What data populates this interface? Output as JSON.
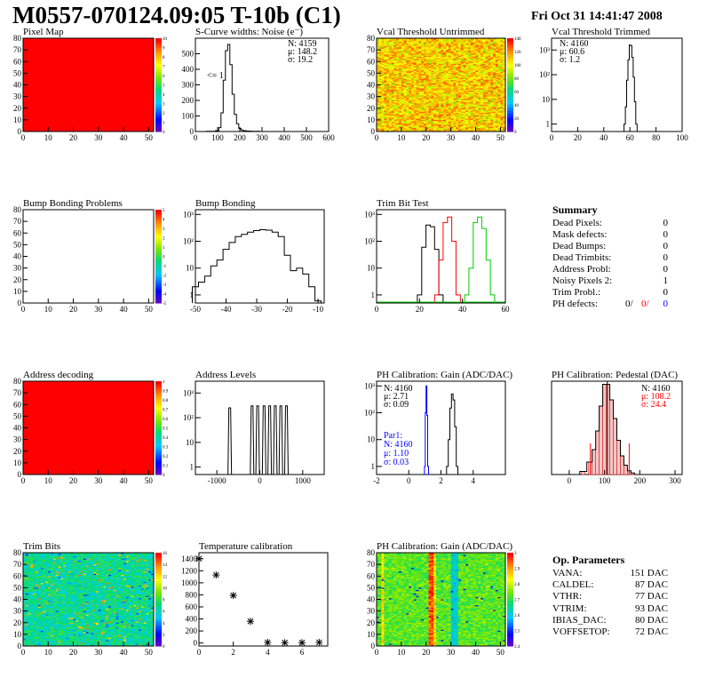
{
  "header": {
    "title": "M0557-070124.09:05 T-10b (C1)",
    "date": "Fri Oct 31 14:41:47 2008"
  },
  "panels": {
    "pixel_map": {
      "title": "Pixel Map"
    },
    "scurve": {
      "title": "S-Curve widths: Noise (e⁻)",
      "stats": [
        "N: 4159",
        "μ: 148.2",
        "σ: 19.2"
      ],
      "note": "<= 1"
    },
    "vcal_untrimmed": {
      "title": "Vcal Threshold Untrimmed"
    },
    "vcal_trimmed": {
      "title": "Vcal Threshold Trimmed",
      "stats": [
        "N: 4160",
        "μ: 60.6",
        "σ: 1.2"
      ]
    },
    "bump_problems": {
      "title": "Bump Bonding Problems"
    },
    "bump_bonding": {
      "title": "Bump Bonding"
    },
    "trim_bit_test": {
      "title": "Trim Bit Test"
    },
    "address_decoding": {
      "title": "Address decoding"
    },
    "address_levels": {
      "title": "Address Levels"
    },
    "ph_gain": {
      "title": "PH Calibration: Gain (ADC/DAC)",
      "stats": [
        "N: 4160",
        "μ: 2.71",
        "σ: 0.09"
      ],
      "par1": [
        "Par1:",
        "N: 4160",
        "μ: 1.10",
        "σ: 0.03"
      ]
    },
    "ph_pedestal": {
      "title": "PH Calibration: Pedestal (DAC)",
      "stats": [
        "N: 4160",
        "μ: 108.2",
        "σ: 24.4"
      ]
    },
    "trim_bits": {
      "title": "Trim Bits"
    },
    "temperature": {
      "title": "Temperature calibration"
    },
    "ph_gain_map": {
      "title": "PH Calibration: Gain (ADC/DAC)"
    }
  },
  "summary": {
    "title": "Summary",
    "rows": [
      {
        "label": "Dead Pixels:",
        "value": "0"
      },
      {
        "label": "Mask defects:",
        "value": "0"
      },
      {
        "label": "Dead Bumps:",
        "value": "0"
      },
      {
        "label": "Dead Trimbits:",
        "value": "0"
      },
      {
        "label": "Address Probl:",
        "value": "0"
      },
      {
        "label": "Noisy Pixels 2:",
        "value": "1"
      },
      {
        "label": "Trim Probl.:",
        "value": "0"
      }
    ],
    "ph_defects": {
      "label": "PH defects:",
      "v1": "0/",
      "v2": "0/",
      "v3": "0"
    }
  },
  "op_parameters": {
    "title": "Op. Parameters",
    "rows": [
      {
        "label": "VANA:",
        "value": "151 DAC"
      },
      {
        "label": "CALDEL:",
        "value": "87 DAC"
      },
      {
        "label": "VTHR:",
        "value": "77 DAC"
      },
      {
        "label": "VTRIM:",
        "value": "93 DAC"
      },
      {
        "label": "IBIAS_DAC:",
        "value": "80 DAC"
      },
      {
        "label": "VOFFSETOP:",
        "value": "72 DAC"
      }
    ]
  },
  "colors": {
    "red": "#ff0000",
    "blue": "#0000ff",
    "green": "#00cc00",
    "pedestal_fill": "#cc0000"
  },
  "chart_data": [
    {
      "type": "heatmap",
      "name": "Pixel Map",
      "xlim": [
        0,
        52
      ],
      "ylim": [
        0,
        80
      ],
      "xticks": [
        0,
        10,
        20,
        30,
        40,
        50
      ],
      "yticks": [
        0,
        10,
        20,
        30,
        40,
        50,
        60,
        70,
        80
      ],
      "zticks": [
        "0",
        "1",
        "2",
        "3",
        "4",
        "5",
        "6",
        "7",
        "8",
        "9",
        "10"
      ],
      "uniform_value": 10
    },
    {
      "type": "line",
      "name": "S-Curve widths",
      "xlim": [
        0,
        600
      ],
      "ylim": [
        0,
        600
      ],
      "xticks": [
        0,
        100,
        200,
        300,
        400,
        500,
        600
      ],
      "yticks": [
        0,
        100,
        200,
        300,
        400,
        500
      ],
      "x": [
        60,
        80,
        100,
        110,
        120,
        130,
        140,
        150,
        160,
        170,
        180,
        190,
        200,
        210,
        220,
        240,
        260,
        280
      ],
      "y": [
        1,
        2,
        5,
        25,
        120,
        330,
        520,
        560,
        430,
        240,
        110,
        50,
        20,
        10,
        5,
        3,
        2,
        1
      ]
    },
    {
      "type": "heatmap",
      "name": "Vcal Threshold Untrimmed",
      "xlim": [
        0,
        52
      ],
      "ylim": [
        0,
        80
      ],
      "xticks": [
        0,
        10,
        20,
        30,
        40,
        50
      ],
      "yticks": [
        0,
        10,
        20,
        30,
        40,
        50,
        60,
        70,
        80
      ],
      "zticks": [
        "0",
        "20",
        "40",
        "60",
        "80",
        "100",
        "120",
        "140"
      ]
    },
    {
      "type": "line",
      "name": "Vcal Threshold Trimmed",
      "log_y": true,
      "xlim": [
        0,
        100
      ],
      "ylim": [
        0.5,
        3000
      ],
      "xticks": [
        0,
        20,
        40,
        60,
        80,
        100
      ],
      "yticks": [
        "1",
        "10",
        "10²",
        "10³"
      ],
      "x": [
        56,
        57,
        58,
        59,
        60,
        61,
        62,
        63,
        64,
        65
      ],
      "y": [
        1,
        5,
        60,
        400,
        1600,
        1500,
        500,
        80,
        8,
        1
      ]
    },
    {
      "type": "heatmap",
      "name": "Bump Bonding Problems",
      "xlim": [
        0,
        52
      ],
      "ylim": [
        0,
        80
      ],
      "xticks": [
        0,
        10,
        20,
        30,
        40,
        50
      ],
      "yticks": [
        0,
        10,
        20,
        30,
        40,
        50,
        60,
        70,
        80
      ],
      "zticks": [
        "-5",
        "-4",
        "-3",
        "-2",
        "-1",
        "0",
        "1",
        "2",
        "3",
        "4",
        "5"
      ],
      "empty": true
    },
    {
      "type": "line",
      "name": "Bump Bonding",
      "log_y": true,
      "xlim": [
        -50,
        -8
      ],
      "ylim": [
        0.5,
        1500
      ],
      "xticks": [
        -50,
        -40,
        -30,
        -20,
        -10
      ],
      "yticks": [
        "1",
        "10",
        "10²",
        "10³"
      ],
      "x": [
        -50,
        -48,
        -46,
        -44,
        -42,
        -40,
        -38,
        -36,
        -34,
        -32,
        -30,
        -28,
        -26,
        -24,
        -22,
        -20,
        -18,
        -16,
        -14,
        -12,
        -10
      ],
      "y": [
        2,
        3,
        5,
        12,
        20,
        50,
        90,
        150,
        180,
        220,
        250,
        270,
        260,
        220,
        150,
        30,
        8,
        10,
        6,
        2,
        0.6
      ]
    },
    {
      "type": "line",
      "name": "Trim Bit Test",
      "log_y": true,
      "xlim": [
        0,
        60
      ],
      "ylim": [
        0.5,
        1500
      ],
      "xticks": [
        0,
        20,
        40,
        60
      ],
      "yticks": [
        "1",
        "10",
        "10²",
        "10³"
      ],
      "series": [
        {
          "name": "black",
          "x": [
            20,
            22,
            24,
            26,
            28,
            30
          ],
          "y": [
            1,
            60,
            400,
            350,
            50,
            1
          ]
        },
        {
          "name": "red",
          "x": [
            28,
            30,
            32,
            34,
            36,
            38
          ],
          "y": [
            1,
            20,
            500,
            800,
            100,
            1
          ]
        },
        {
          "name": "green",
          "x": [
            42,
            44,
            46,
            48,
            50,
            52,
            54
          ],
          "y": [
            1,
            10,
            500,
            800,
            300,
            20,
            1
          ]
        }
      ]
    },
    {
      "type": "heatmap",
      "name": "Address decoding",
      "xlim": [
        0,
        52
      ],
      "ylim": [
        0,
        80
      ],
      "xticks": [
        0,
        10,
        20,
        30,
        40,
        50
      ],
      "yticks": [
        0,
        10,
        20,
        30,
        40,
        50,
        60,
        70,
        80
      ],
      "zticks": [
        "0",
        "0.1",
        "0.2",
        "0.3",
        "0.4",
        "0.5",
        "0.6",
        "0.7",
        "0.8",
        "0.9",
        "1"
      ],
      "uniform_value": 1
    },
    {
      "type": "bar",
      "name": "Address Levels",
      "log_y": true,
      "xlim": [
        -1500,
        1500
      ],
      "ylim": [
        0.5,
        3000
      ],
      "xticks": [
        -1000,
        0,
        1000
      ],
      "yticks": [
        "1",
        "10",
        "10²",
        "10³"
      ],
      "x": [
        -700,
        -180,
        -50,
        100,
        230,
        360,
        490,
        620
      ],
      "values": [
        250,
        300,
        300,
        300,
        300,
        300,
        300,
        300
      ]
    },
    {
      "type": "line",
      "name": "PH Calibration Gain",
      "log_y": true,
      "xlim": [
        -2,
        6
      ],
      "ylim": [
        0.5,
        1500
      ],
      "xticks": [
        -2,
        0,
        2,
        4
      ],
      "yticks": [
        "1",
        "10",
        "10²",
        "10³"
      ],
      "series": [
        {
          "name": "black",
          "x": [
            2.4,
            2.5,
            2.6,
            2.7,
            2.8,
            2.9,
            3.0
          ],
          "y": [
            1,
            10,
            150,
            500,
            300,
            30,
            1
          ]
        },
        {
          "name": "blue",
          "x": [
            1.0,
            1.05,
            1.1,
            1.15,
            1.2
          ],
          "y": [
            1,
            100,
            1000,
            80,
            1
          ]
        }
      ]
    },
    {
      "type": "bar",
      "name": "PH Calibration Pedestal",
      "xlim": [
        -50,
        320
      ],
      "ylim": [
        0,
        300
      ],
      "xticks": [
        0,
        100,
        200,
        300
      ],
      "x": [
        40,
        60,
        70,
        80,
        90,
        100,
        110,
        120,
        130,
        140,
        150,
        160,
        170,
        180
      ],
      "values": [
        10,
        40,
        80,
        140,
        220,
        290,
        290,
        240,
        180,
        110,
        60,
        30,
        12,
        5
      ]
    },
    {
      "type": "heatmap",
      "name": "Trim Bits",
      "xlim": [
        0,
        52
      ],
      "ylim": [
        0,
        80
      ],
      "xticks": [
        0,
        10,
        20,
        30,
        40,
        50
      ],
      "yticks": [
        0,
        10,
        20,
        30,
        40,
        50,
        60,
        70,
        80
      ],
      "zticks": [
        "0",
        "2",
        "4",
        "6",
        "8",
        "10",
        "12",
        "14",
        "16"
      ]
    },
    {
      "type": "scatter",
      "name": "Temperature calibration",
      "xlim": [
        0,
        7.5
      ],
      "ylim": [
        -50,
        1500
      ],
      "xticks": [
        0,
        2,
        4,
        6
      ],
      "yticks": [
        0,
        200,
        400,
        600,
        800,
        1000,
        1200,
        1400
      ],
      "x": [
        0,
        1,
        2,
        3,
        4,
        5,
        6,
        7
      ],
      "y": [
        1400,
        1130,
        790,
        360,
        10,
        5,
        5,
        10
      ]
    },
    {
      "type": "heatmap",
      "name": "PH Calibration Gain map",
      "xlim": [
        0,
        52
      ],
      "ylim": [
        0,
        80
      ],
      "xticks": [
        0,
        10,
        20,
        30,
        40,
        50
      ],
      "yticks": [
        0,
        10,
        20,
        30,
        40,
        50,
        60,
        70,
        80
      ],
      "zticks": [
        "2.4",
        "2.5",
        "2.6",
        "2.7",
        "2.8",
        "2.9",
        "3"
      ]
    }
  ]
}
